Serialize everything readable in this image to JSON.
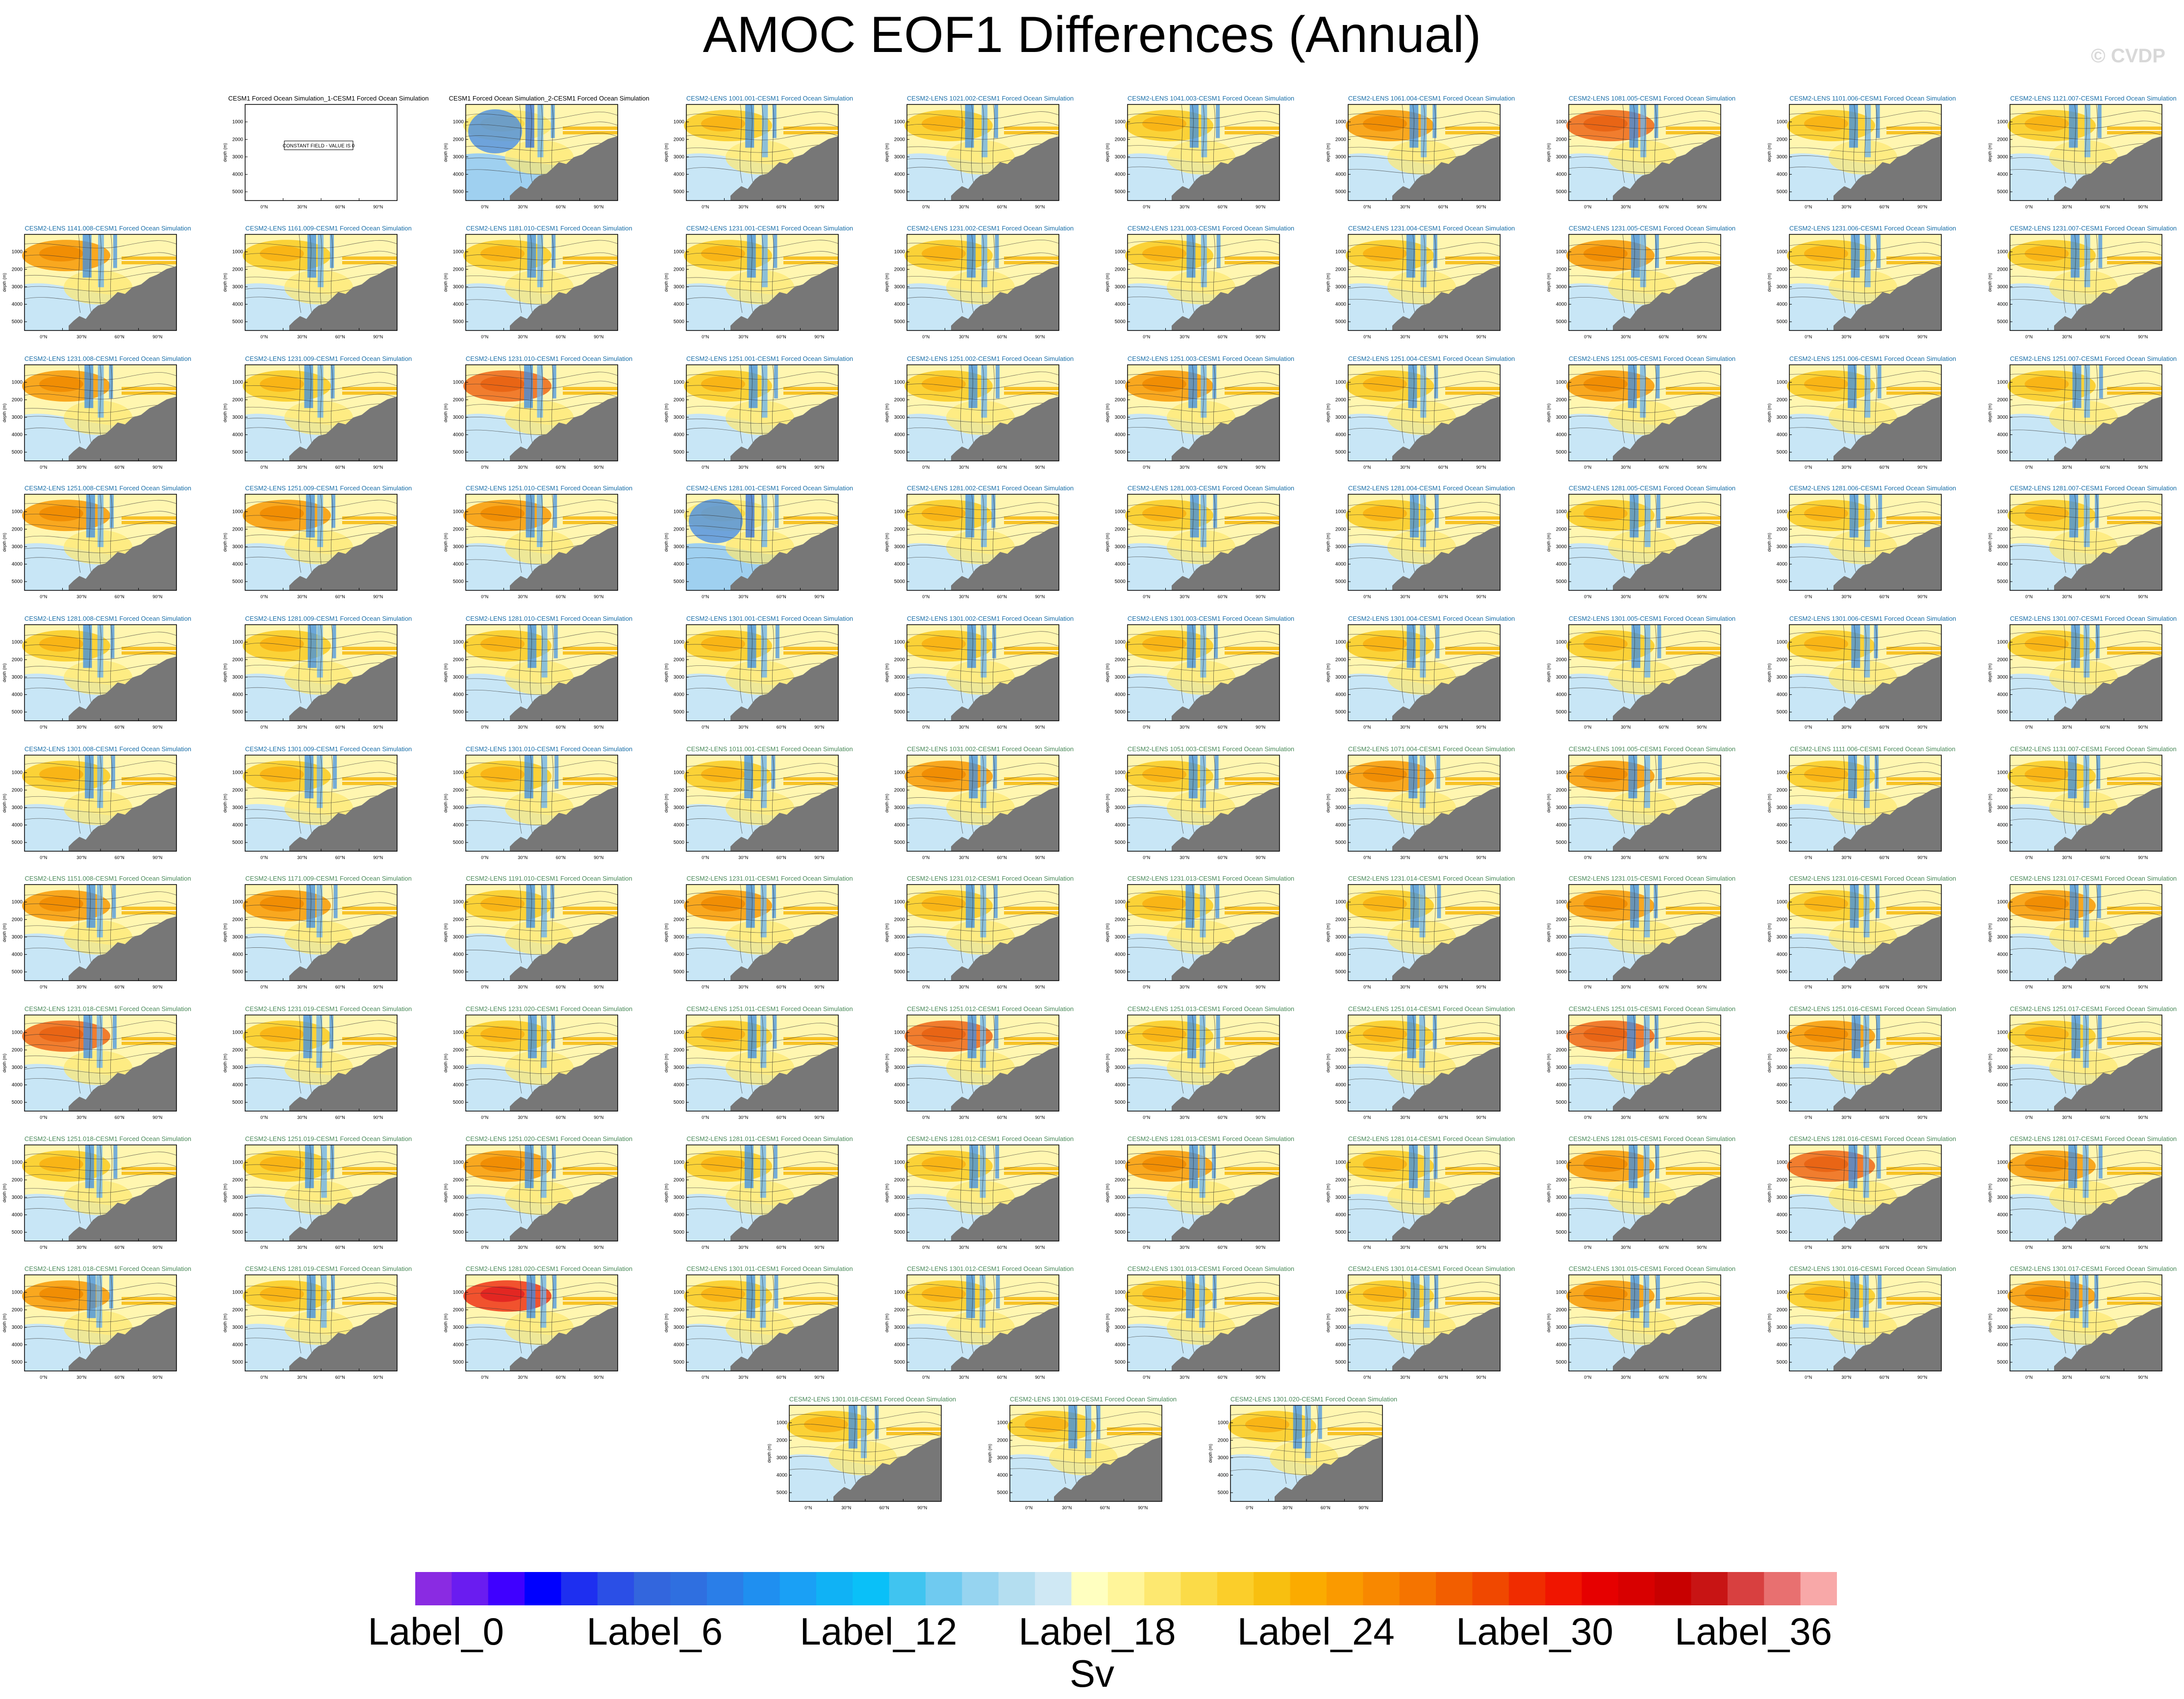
{
  "title": "AMOC EOF1 Differences (Annual)",
  "watermark": "© CVDP",
  "colorbar": {
    "units": "Sv",
    "labels": [
      "Label_0",
      "Label_6",
      "Label_12",
      "Label_18",
      "Label_24",
      "Label_30",
      "Label_36"
    ],
    "colors": [
      "#8a2be2",
      "#6a1cf0",
      "#3f00ff",
      "#0000ff",
      "#1e2ff0",
      "#2b4fe6",
      "#3366dd",
      "#2f6fe0",
      "#2a7ee8",
      "#1f8ff0",
      "#1aa0f5",
      "#10b2f5",
      "#0ac0f8",
      "#40c4f0",
      "#6fcaf0",
      "#96d4f0",
      "#b4def0",
      "#cfe8f4",
      "#ffffc0",
      "#fff59a",
      "#fde870",
      "#fbdb48",
      "#fbce2a",
      "#f8bf10",
      "#fbab00",
      "#fa9a00",
      "#f88800",
      "#f57400",
      "#f25e00",
      "#f04800",
      "#f02c00",
      "#f01500",
      "#e60000",
      "#d80000",
      "#c80000",
      "#c81414",
      "#d84040",
      "#e87070",
      "#f8a8a8"
    ]
  },
  "panel_common": {
    "ylabel": "depth (m)",
    "yticks": [
      "1000",
      "2000",
      "3000",
      "4000",
      "5000"
    ],
    "xticks": [
      "0°N",
      "30°N",
      "60°N",
      "90°N"
    ]
  },
  "chart_data": {
    "type": "heatmap",
    "title": "AMOC EOF1 Differences (Annual)",
    "xlabel": "",
    "ylabel": "depth (m)",
    "xlim": [
      -30,
      90
    ],
    "ylim": [
      5500,
      0
    ],
    "colorbar_units": "Sv",
    "colorbar_labels": [
      "Label_0",
      "Label_6",
      "Label_12",
      "Label_18",
      "Label_24",
      "Label_30",
      "Label_36"
    ],
    "panels": [
      {
        "title": "CESM1 Forced Ocean Simulation_1-CESM1 Forced Ocean Simulation",
        "color": "black",
        "note": "CONSTANT FIELD - VALUE IS 0",
        "intensity": 0
      },
      {
        "title": "CESM1 Forced Ocean Simulation_2-CESM1 Forced Ocean Simulation",
        "color": "black",
        "intensity": 1
      },
      {
        "title": "CESM2-LENS 1001.001-CESM1 Forced Ocean Simulation",
        "color": "blue",
        "intensity": 2
      },
      {
        "title": "CESM2-LENS 1021.002-CESM1 Forced Ocean Simulation",
        "color": "blue",
        "intensity": 2
      },
      {
        "title": "CESM2-LENS 1041.003-CESM1 Forced Ocean Simulation",
        "color": "blue",
        "intensity": 2
      },
      {
        "title": "CESM2-LENS 1061.004-CESM1 Forced Ocean Simulation",
        "color": "blue",
        "intensity": 3
      },
      {
        "title": "CESM2-LENS 1081.005-CESM1 Forced Ocean Simulation",
        "color": "blue",
        "intensity": 4
      },
      {
        "title": "CESM2-LENS 1101.006-CESM1 Forced Ocean Simulation",
        "color": "blue",
        "intensity": 2
      },
      {
        "title": "CESM2-LENS 1121.007-CESM1 Forced Ocean Simulation",
        "color": "blue",
        "intensity": 2
      },
      {
        "title": "CESM2-LENS 1141.008-CESM1 Forced Ocean Simulation",
        "color": "blue",
        "intensity": 3
      },
      {
        "title": "CESM2-LENS 1161.009-CESM1 Forced Ocean Simulation",
        "color": "blue",
        "intensity": 2
      },
      {
        "title": "CESM2-LENS 1181.010-CESM1 Forced Ocean Simulation",
        "color": "blue",
        "intensity": 2
      },
      {
        "title": "CESM2-LENS 1231.001-CESM1 Forced Ocean Simulation",
        "color": "blue",
        "intensity": 2
      },
      {
        "title": "CESM2-LENS 1231.002-CESM1 Forced Ocean Simulation",
        "color": "blue",
        "intensity": 2
      },
      {
        "title": "CESM2-LENS 1231.003-CESM1 Forced Ocean Simulation",
        "color": "blue",
        "intensity": 2
      },
      {
        "title": "CESM2-LENS 1231.004-CESM1 Forced Ocean Simulation",
        "color": "blue",
        "intensity": 2
      },
      {
        "title": "CESM2-LENS 1231.005-CESM1 Forced Ocean Simulation",
        "color": "blue",
        "intensity": 3
      },
      {
        "title": "CESM2-LENS 1231.006-CESM1 Forced Ocean Simulation",
        "color": "blue",
        "intensity": 2
      },
      {
        "title": "CESM2-LENS 1231.007-CESM1 Forced Ocean Simulation",
        "color": "blue",
        "intensity": 2
      },
      {
        "title": "CESM2-LENS 1231.008-CESM1 Forced Ocean Simulation",
        "color": "blue",
        "intensity": 3
      },
      {
        "title": "CESM2-LENS 1231.009-CESM1 Forced Ocean Simulation",
        "color": "blue",
        "intensity": 2
      },
      {
        "title": "CESM2-LENS 1231.010-CESM1 Forced Ocean Simulation",
        "color": "blue",
        "intensity": 4
      },
      {
        "title": "CESM2-LENS 1251.001-CESM1 Forced Ocean Simulation",
        "color": "blue",
        "intensity": 2
      },
      {
        "title": "CESM2-LENS 1251.002-CESM1 Forced Ocean Simulation",
        "color": "blue",
        "intensity": 2
      },
      {
        "title": "CESM2-LENS 1251.003-CESM1 Forced Ocean Simulation",
        "color": "blue",
        "intensity": 3
      },
      {
        "title": "CESM2-LENS 1251.004-CESM1 Forced Ocean Simulation",
        "color": "blue",
        "intensity": 2
      },
      {
        "title": "CESM2-LENS 1251.005-CESM1 Forced Ocean Simulation",
        "color": "blue",
        "intensity": 3
      },
      {
        "title": "CESM2-LENS 1251.006-CESM1 Forced Ocean Simulation",
        "color": "blue",
        "intensity": 2
      },
      {
        "title": "CESM2-LENS 1251.007-CESM1 Forced Ocean Simulation",
        "color": "blue",
        "intensity": 2
      },
      {
        "title": "CESM2-LENS 1251.008-CESM1 Forced Ocean Simulation",
        "color": "blue",
        "intensity": 3
      },
      {
        "title": "CESM2-LENS 1251.009-CESM1 Forced Ocean Simulation",
        "color": "blue",
        "intensity": 3
      },
      {
        "title": "CESM2-LENS 1251.010-CESM1 Forced Ocean Simulation",
        "color": "blue",
        "intensity": 3
      },
      {
        "title": "CESM2-LENS 1281.001-CESM1 Forced Ocean Simulation",
        "color": "blue",
        "intensity": 1
      },
      {
        "title": "CESM2-LENS 1281.002-CESM1 Forced Ocean Simulation",
        "color": "blue",
        "intensity": 2
      },
      {
        "title": "CESM2-LENS 1281.003-CESM1 Forced Ocean Simulation",
        "color": "blue",
        "intensity": 2
      },
      {
        "title": "CESM2-LENS 1281.004-CESM1 Forced Ocean Simulation",
        "color": "blue",
        "intensity": 2
      },
      {
        "title": "CESM2-LENS 1281.005-CESM1 Forced Ocean Simulation",
        "color": "blue",
        "intensity": 2
      },
      {
        "title": "CESM2-LENS 1281.006-CESM1 Forced Ocean Simulation",
        "color": "blue",
        "intensity": 2
      },
      {
        "title": "CESM2-LENS 1281.007-CESM1 Forced Ocean Simulation",
        "color": "blue",
        "intensity": 2
      },
      {
        "title": "CESM2-LENS 1281.008-CESM1 Forced Ocean Simulation",
        "color": "blue",
        "intensity": 2
      },
      {
        "title": "CESM2-LENS 1281.009-CESM1 Forced Ocean Simulation",
        "color": "blue",
        "intensity": 2
      },
      {
        "title": "CESM2-LENS 1281.010-CESM1 Forced Ocean Simulation",
        "color": "blue",
        "intensity": 2
      },
      {
        "title": "CESM2-LENS 1301.001-CESM1 Forced Ocean Simulation",
        "color": "blue",
        "intensity": 2
      },
      {
        "title": "CESM2-LENS 1301.002-CESM1 Forced Ocean Simulation",
        "color": "blue",
        "intensity": 2
      },
      {
        "title": "CESM2-LENS 1301.003-CESM1 Forced Ocean Simulation",
        "color": "blue",
        "intensity": 2
      },
      {
        "title": "CESM2-LENS 1301.004-CESM1 Forced Ocean Simulation",
        "color": "blue",
        "intensity": 2
      },
      {
        "title": "CESM2-LENS 1301.005-CESM1 Forced Ocean Simulation",
        "color": "blue",
        "intensity": 2
      },
      {
        "title": "CESM2-LENS 1301.006-CESM1 Forced Ocean Simulation",
        "color": "blue",
        "intensity": 2
      },
      {
        "title": "CESM2-LENS 1301.007-CESM1 Forced Ocean Simulation",
        "color": "blue",
        "intensity": 2
      },
      {
        "title": "CESM2-LENS 1301.008-CESM1 Forced Ocean Simulation",
        "color": "blue",
        "intensity": 2
      },
      {
        "title": "CESM2-LENS 1301.009-CESM1 Forced Ocean Simulation",
        "color": "blue",
        "intensity": 2
      },
      {
        "title": "CESM2-LENS 1301.010-CESM1 Forced Ocean Simulation",
        "color": "blue",
        "intensity": 2
      },
      {
        "title": "CESM2-LENS 1011.001-CESM1 Forced Ocean Simulation",
        "color": "green",
        "intensity": 2
      },
      {
        "title": "CESM2-LENS 1031.002-CESM1 Forced Ocean Simulation",
        "color": "green",
        "intensity": 3
      },
      {
        "title": "CESM2-LENS 1051.003-CESM1 Forced Ocean Simulation",
        "color": "green",
        "intensity": 2
      },
      {
        "title": "CESM2-LENS 1071.004-CESM1 Forced Ocean Simulation",
        "color": "green",
        "intensity": 3
      },
      {
        "title": "CESM2-LENS 1091.005-CESM1 Forced Ocean Simulation",
        "color": "green",
        "intensity": 3
      },
      {
        "title": "CESM2-LENS 1111.006-CESM1 Forced Ocean Simulation",
        "color": "green",
        "intensity": 2
      },
      {
        "title": "CESM2-LENS 1131.007-CESM1 Forced Ocean Simulation",
        "color": "green",
        "intensity": 2
      },
      {
        "title": "CESM2-LENS 1151.008-CESM1 Forced Ocean Simulation",
        "color": "green",
        "intensity": 3
      },
      {
        "title": "CESM2-LENS 1171.009-CESM1 Forced Ocean Simulation",
        "color": "green",
        "intensity": 3
      },
      {
        "title": "CESM2-LENS 1191.010-CESM1 Forced Ocean Simulation",
        "color": "green",
        "intensity": 2
      },
      {
        "title": "CESM2-LENS 1231.011-CESM1 Forced Ocean Simulation",
        "color": "green",
        "intensity": 3
      },
      {
        "title": "CESM2-LENS 1231.012-CESM1 Forced Ocean Simulation",
        "color": "green",
        "intensity": 2
      },
      {
        "title": "CESM2-LENS 1231.013-CESM1 Forced Ocean Simulation",
        "color": "green",
        "intensity": 2
      },
      {
        "title": "CESM2-LENS 1231.014-CESM1 Forced Ocean Simulation",
        "color": "green",
        "intensity": 2
      },
      {
        "title": "CESM2-LENS 1231.015-CESM1 Forced Ocean Simulation",
        "color": "green",
        "intensity": 3
      },
      {
        "title": "CESM2-LENS 1231.016-CESM1 Forced Ocean Simulation",
        "color": "green",
        "intensity": 2
      },
      {
        "title": "CESM2-LENS 1231.017-CESM1 Forced Ocean Simulation",
        "color": "green",
        "intensity": 3
      },
      {
        "title": "CESM2-LENS 1231.018-CESM1 Forced Ocean Simulation",
        "color": "green",
        "intensity": 4
      },
      {
        "title": "CESM2-LENS 1231.019-CESM1 Forced Ocean Simulation",
        "color": "green",
        "intensity": 2
      },
      {
        "title": "CESM2-LENS 1231.020-CESM1 Forced Ocean Simulation",
        "color": "green",
        "intensity": 2
      },
      {
        "title": "CESM2-LENS 1251.011-CESM1 Forced Ocean Simulation",
        "color": "green",
        "intensity": 2
      },
      {
        "title": "CESM2-LENS 1251.012-CESM1 Forced Ocean Simulation",
        "color": "green",
        "intensity": 4
      },
      {
        "title": "CESM2-LENS 1251.013-CESM1 Forced Ocean Simulation",
        "color": "green",
        "intensity": 2
      },
      {
        "title": "CESM2-LENS 1251.014-CESM1 Forced Ocean Simulation",
        "color": "green",
        "intensity": 2
      },
      {
        "title": "CESM2-LENS 1251.015-CESM1 Forced Ocean Simulation",
        "color": "green",
        "intensity": 4
      },
      {
        "title": "CESM2-LENS 1251.016-CESM1 Forced Ocean Simulation",
        "color": "green",
        "intensity": 3
      },
      {
        "title": "CESM2-LENS 1251.017-CESM1 Forced Ocean Simulation",
        "color": "green",
        "intensity": 2
      },
      {
        "title": "CESM2-LENS 1251.018-CESM1 Forced Ocean Simulation",
        "color": "green",
        "intensity": 2
      },
      {
        "title": "CESM2-LENS 1251.019-CESM1 Forced Ocean Simulation",
        "color": "green",
        "intensity": 2
      },
      {
        "title": "CESM2-LENS 1251.020-CESM1 Forced Ocean Simulation",
        "color": "green",
        "intensity": 3
      },
      {
        "title": "CESM2-LENS 1281.011-CESM1 Forced Ocean Simulation",
        "color": "green",
        "intensity": 2
      },
      {
        "title": "CESM2-LENS 1281.012-CESM1 Forced Ocean Simulation",
        "color": "green",
        "intensity": 2
      },
      {
        "title": "CESM2-LENS 1281.013-CESM1 Forced Ocean Simulation",
        "color": "green",
        "intensity": 3
      },
      {
        "title": "CESM2-LENS 1281.014-CESM1 Forced Ocean Simulation",
        "color": "green",
        "intensity": 2
      },
      {
        "title": "CESM2-LENS 1281.015-CESM1 Forced Ocean Simulation",
        "color": "green",
        "intensity": 3
      },
      {
        "title": "CESM2-LENS 1281.016-CESM1 Forced Ocean Simulation",
        "color": "green",
        "intensity": 4
      },
      {
        "title": "CESM2-LENS 1281.017-CESM1 Forced Ocean Simulation",
        "color": "green",
        "intensity": 3
      },
      {
        "title": "CESM2-LENS 1281.018-CESM1 Forced Ocean Simulation",
        "color": "green",
        "intensity": 3
      },
      {
        "title": "CESM2-LENS 1281.019-CESM1 Forced Ocean Simulation",
        "color": "green",
        "intensity": 2
      },
      {
        "title": "CESM2-LENS 1281.020-CESM1 Forced Ocean Simulation",
        "color": "green",
        "intensity": 5
      },
      {
        "title": "CESM2-LENS 1301.011-CESM1 Forced Ocean Simulation",
        "color": "green",
        "intensity": 2
      },
      {
        "title": "CESM2-LENS 1301.012-CESM1 Forced Ocean Simulation",
        "color": "green",
        "intensity": 2
      },
      {
        "title": "CESM2-LENS 1301.013-CESM1 Forced Ocean Simulation",
        "color": "green",
        "intensity": 2
      },
      {
        "title": "CESM2-LENS 1301.014-CESM1 Forced Ocean Simulation",
        "color": "green",
        "intensity": 2
      },
      {
        "title": "CESM2-LENS 1301.015-CESM1 Forced Ocean Simulation",
        "color": "green",
        "intensity": 3
      },
      {
        "title": "CESM2-LENS 1301.016-CESM1 Forced Ocean Simulation",
        "color": "green",
        "intensity": 2
      },
      {
        "title": "CESM2-LENS 1301.017-CESM1 Forced Ocean Simulation",
        "color": "green",
        "intensity": 3
      },
      {
        "title": "CESM2-LENS 1301.018-CESM1 Forced Ocean Simulation",
        "color": "green",
        "intensity": 2
      },
      {
        "title": "CESM2-LENS 1301.019-CESM1 Forced Ocean Simulation",
        "color": "green",
        "intensity": 2
      },
      {
        "title": "CESM2-LENS 1301.020-CESM1 Forced Ocean Simulation",
        "color": "green",
        "intensity": 2
      }
    ]
  }
}
